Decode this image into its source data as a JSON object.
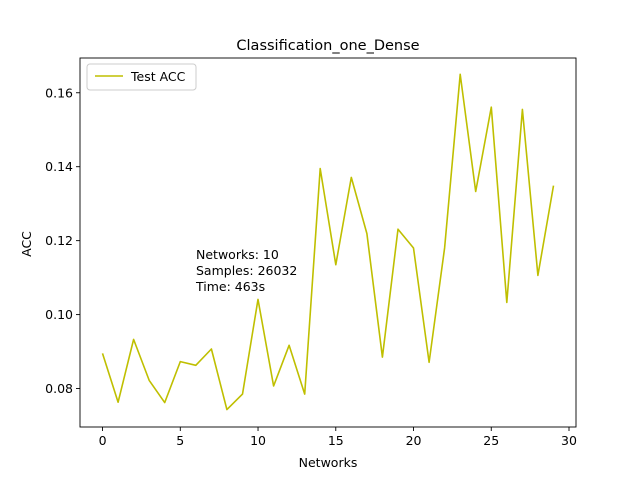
{
  "chart_data": {
    "type": "line",
    "title": "Classification_one_Dense",
    "xlabel": "Networks",
    "ylabel": "ACC",
    "xlim": [
      -1.45,
      30.45
    ],
    "ylim": [
      0.0696,
      0.1694
    ],
    "xticks": [
      0,
      5,
      10,
      15,
      20,
      25,
      30
    ],
    "yticks": [
      0.08,
      0.1,
      0.12,
      0.14,
      0.16
    ],
    "xtick_labels": [
      "0",
      "5",
      "10",
      "15",
      "20",
      "25",
      "30"
    ],
    "ytick_labels": [
      "0.08",
      "0.10",
      "0.12",
      "0.14",
      "0.16"
    ],
    "legend_position": "top-left",
    "grid": false,
    "series": [
      {
        "name": "Test ACC",
        "color": "#bfbf00",
        "x": [
          0,
          1,
          2,
          3,
          4,
          5,
          6,
          7,
          8,
          9,
          10,
          11,
          12,
          13,
          14,
          15,
          16,
          17,
          18,
          19,
          20,
          21,
          22,
          23,
          24,
          25,
          26,
          27,
          28,
          29
        ],
        "values": [
          0.0895,
          0.0763,
          0.0933,
          0.0822,
          0.0762,
          0.0873,
          0.0863,
          0.0907,
          0.0743,
          0.0785,
          0.1041,
          0.0807,
          0.0917,
          0.0785,
          0.1395,
          0.1135,
          0.1371,
          0.1219,
          0.0885,
          0.1231,
          0.118,
          0.0871,
          0.118,
          0.165,
          0.1333,
          0.1561,
          0.1033,
          0.1555,
          0.1106,
          0.1349
        ]
      }
    ],
    "annotation": [
      "Networks: 10",
      "Samples: 26032",
      "Time: 463s"
    ]
  }
}
